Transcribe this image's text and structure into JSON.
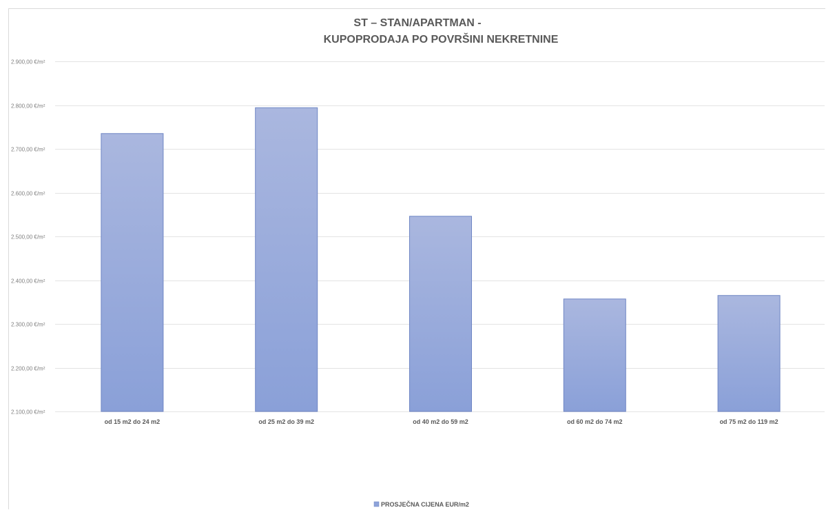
{
  "chart_data": {
    "type": "bar",
    "title_lines": [
      "ST – STAN/APARTMAN -",
      "KUPOPRODAJA PO POVRŠINI NEKRETNINE"
    ],
    "categories": [
      "od 15 m2 do 24 m2",
      "od 25 m2 do 39 m2",
      "od 40 m2 do 59 m2",
      "od 60 m2 do 74 m2",
      "od 75 m2 do 119 m2"
    ],
    "series": [
      {
        "name": "PROSJEČNA CIJENA EUR/m2",
        "values": [
          2735,
          2794,
          2546,
          2357,
          2365
        ]
      }
    ],
    "ylim": [
      2100,
      2900
    ],
    "yticks": [
      2100,
      2200,
      2300,
      2400,
      2500,
      2600,
      2700,
      2800,
      2900
    ],
    "ytick_labels": [
      "2.100,00 €/m²",
      "2.200,00 €/m²",
      "2.300,00 €/m²",
      "2.400,00 €/m²",
      "2.500,00 €/m²",
      "2.600,00 €/m²",
      "2.700,00 €/m²",
      "2.800,00 €/m²",
      "2.900,00 €/m²"
    ],
    "grid": true,
    "legend_position": "bottom",
    "colors": {
      "bar_top": "#aab7df",
      "bar_bottom": "#8aa0d8",
      "bar_border": "#6f86c4",
      "legend_swatch": "#8ea3d9"
    }
  }
}
